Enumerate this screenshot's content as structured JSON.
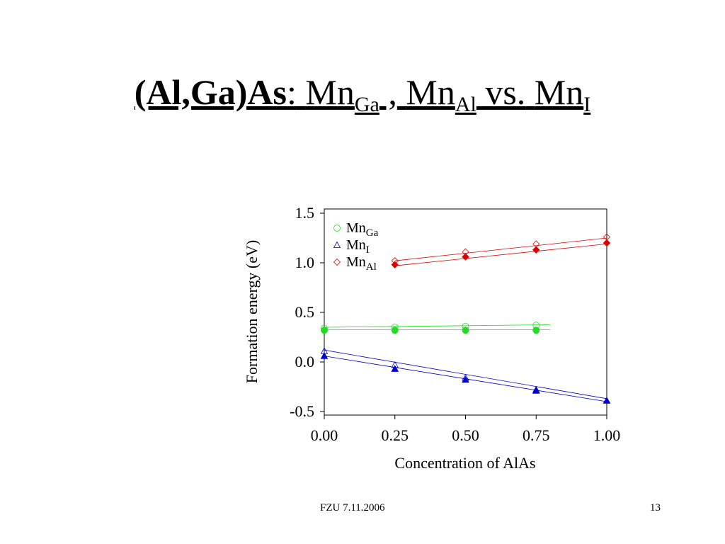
{
  "slide": {
    "title": {
      "material": "(Al,Ga)As",
      "colon": ":",
      "part1": "Mn",
      "sub1": "Ga",
      "sep": " ,",
      "part2": "Mn",
      "sub2": "Al",
      "vs": " vs.",
      "part3": "Mn",
      "sub3": "I"
    },
    "footer_date": "FZU 7.11.2006",
    "page_number": "13"
  },
  "chart_data": {
    "type": "scatter",
    "title": "",
    "xlabel": "Concentration of AlAs",
    "ylabel": "Formation energy (eV)",
    "xlim": [
      0.0,
      1.0
    ],
    "ylim": [
      -0.5,
      1.5
    ],
    "x_ticks": [
      "0.00",
      "0.25",
      "0.50",
      "0.75",
      "1.00"
    ],
    "y_ticks": [
      "-0.5",
      "0.0",
      "0.5",
      "1.0",
      "1.5"
    ],
    "grid": false,
    "legend": {
      "placement": "top-left",
      "entries": [
        {
          "label": "Mn",
          "sub": "Ga",
          "marker": "circle",
          "color": "#22dd22"
        },
        {
          "label": "Mn",
          "sub": "I",
          "marker": "triangle",
          "color": "#0000cc"
        },
        {
          "label": "Mn",
          "sub": "Al",
          "marker": "diamond",
          "color": "#dd0000"
        }
      ]
    },
    "series": [
      {
        "marker": "circle",
        "filled": false,
        "color": "#22dd22",
        "x": [
          0.0,
          0.25,
          0.5,
          0.75
        ],
        "y": [
          0.34,
          0.35,
          0.36,
          0.37
        ]
      },
      {
        "marker": "circle",
        "filled": true,
        "color": "#22dd22",
        "x": [
          0.0,
          0.25,
          0.5,
          0.75
        ],
        "y": [
          0.32,
          0.32,
          0.32,
          0.32
        ]
      },
      {
        "marker": "triangle",
        "filled": false,
        "color": "#0000cc",
        "x": [
          0.0,
          0.25,
          0.5,
          0.75,
          1.0
        ],
        "y": [
          0.11,
          -0.03,
          -0.16,
          -0.28,
          -0.39
        ]
      },
      {
        "marker": "triangle",
        "filled": true,
        "color": "#0000cc",
        "x": [
          0.0,
          0.25,
          0.5,
          0.75,
          1.0
        ],
        "y": [
          0.06,
          -0.07,
          -0.18,
          -0.29,
          -0.39
        ]
      },
      {
        "marker": "diamond",
        "filled": false,
        "color": "#dd0000",
        "x": [
          0.25,
          0.5,
          0.75,
          1.0
        ],
        "y": [
          1.02,
          1.11,
          1.19,
          1.26
        ]
      },
      {
        "marker": "diamond",
        "filled": true,
        "color": "#dd0000",
        "x": [
          0.25,
          0.5,
          0.75,
          1.0
        ],
        "y": [
          0.98,
          1.06,
          1.13,
          1.2
        ]
      }
    ],
    "fit_lines": [
      {
        "color": "#22dd22",
        "x": [
          0.0,
          0.8
        ],
        "y": [
          0.35,
          0.375
        ]
      },
      {
        "color": "#22dd22",
        "x": [
          0.0,
          0.8
        ],
        "y": [
          0.325,
          0.325
        ]
      },
      {
        "color": "#0000cc",
        "x": [
          0.0,
          1.0
        ],
        "y": [
          0.12,
          -0.37
        ]
      },
      {
        "color": "#0000cc",
        "x": [
          0.0,
          1.0
        ],
        "y": [
          0.06,
          -0.4
        ]
      },
      {
        "color": "#dd0000",
        "x": [
          0.25,
          1.0
        ],
        "y": [
          1.02,
          1.25
        ]
      },
      {
        "color": "#dd0000",
        "x": [
          0.25,
          1.0
        ],
        "y": [
          0.97,
          1.19
        ]
      }
    ]
  }
}
